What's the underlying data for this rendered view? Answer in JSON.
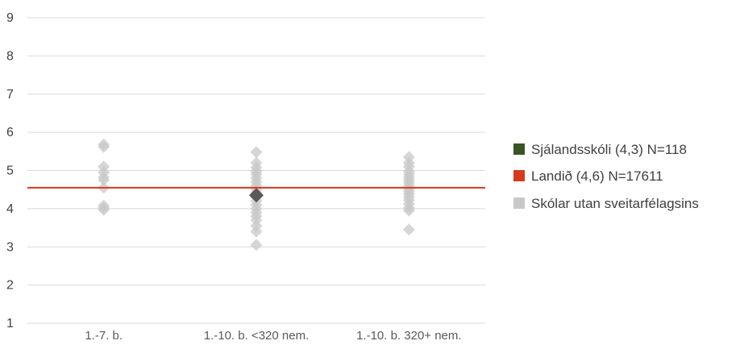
{
  "chart_data": {
    "type": "scatter",
    "title": "",
    "xlabel": "",
    "ylabel": "",
    "ylim": [
      1,
      9
    ],
    "y_ticks": [
      1,
      2,
      3,
      4,
      5,
      6,
      7,
      8,
      9
    ],
    "grid": true,
    "legend_position": "right",
    "categories": [
      "1.-7. b.",
      "1.-10. b. <320 nem.",
      "1.-10. b. 320+ nem."
    ],
    "series": [
      {
        "name": "Sjálandsskóli (4,3) N=118",
        "color": "#375623",
        "marker_color": "#595959",
        "points": [
          {
            "category": "1.-10. b. <320 nem.",
            "y": 4.35
          }
        ]
      },
      {
        "name": "Landið (4,6) N=17611",
        "color": "#d63a1e",
        "style": "horizontal-line",
        "y": 4.55
      },
      {
        "name": "Skólar utan sveitarfélagsins",
        "color": "#c8c8c8",
        "points": [
          {
            "category": "1.-7. b.",
            "y": 5.68
          },
          {
            "category": "1.-7. b.",
            "y": 5.62
          },
          {
            "category": "1.-7. b.",
            "y": 5.1
          },
          {
            "category": "1.-7. b.",
            "y": 4.95
          },
          {
            "category": "1.-7. b.",
            "y": 4.82
          },
          {
            "category": "1.-7. b.",
            "y": 4.75
          },
          {
            "category": "1.-7. b.",
            "y": 4.55
          },
          {
            "category": "1.-7. b.",
            "y": 4.08
          },
          {
            "category": "1.-7. b.",
            "y": 4.02
          },
          {
            "category": "1.-7. b.",
            "y": 3.97
          },
          {
            "category": "1.-10. b. <320 nem.",
            "y": 5.48
          },
          {
            "category": "1.-10. b. <320 nem.",
            "y": 5.2
          },
          {
            "category": "1.-10. b. <320 nem.",
            "y": 5.08
          },
          {
            "category": "1.-10. b. <320 nem.",
            "y": 4.98
          },
          {
            "category": "1.-10. b. <320 nem.",
            "y": 4.9
          },
          {
            "category": "1.-10. b. <320 nem.",
            "y": 4.8
          },
          {
            "category": "1.-10. b. <320 nem.",
            "y": 4.7
          },
          {
            "category": "1.-10. b. <320 nem.",
            "y": 4.6
          },
          {
            "category": "1.-10. b. <320 nem.",
            "y": 4.5
          },
          {
            "category": "1.-10. b. <320 nem.",
            "y": 4.42
          },
          {
            "category": "1.-10. b. <320 nem.",
            "y": 4.3
          },
          {
            "category": "1.-10. b. <320 nem.",
            "y": 4.2
          },
          {
            "category": "1.-10. b. <320 nem.",
            "y": 4.1
          },
          {
            "category": "1.-10. b. <320 nem.",
            "y": 4.0
          },
          {
            "category": "1.-10. b. <320 nem.",
            "y": 3.9
          },
          {
            "category": "1.-10. b. <320 nem.",
            "y": 3.8
          },
          {
            "category": "1.-10. b. <320 nem.",
            "y": 3.7
          },
          {
            "category": "1.-10. b. <320 nem.",
            "y": 3.55
          },
          {
            "category": "1.-10. b. <320 nem.",
            "y": 3.4
          },
          {
            "category": "1.-10. b. <320 nem.",
            "y": 3.05
          },
          {
            "category": "1.-10. b. 320+ nem.",
            "y": 5.35
          },
          {
            "category": "1.-10. b. 320+ nem.",
            "y": 5.2
          },
          {
            "category": "1.-10. b. 320+ nem.",
            "y": 5.1
          },
          {
            "category": "1.-10. b. 320+ nem.",
            "y": 4.98
          },
          {
            "category": "1.-10. b. 320+ nem.",
            "y": 4.9
          },
          {
            "category": "1.-10. b. 320+ nem.",
            "y": 4.82
          },
          {
            "category": "1.-10. b. 320+ nem.",
            "y": 4.75
          },
          {
            "category": "1.-10. b. 320+ nem.",
            "y": 4.68
          },
          {
            "category": "1.-10. b. 320+ nem.",
            "y": 4.6
          },
          {
            "category": "1.-10. b. 320+ nem.",
            "y": 4.52
          },
          {
            "category": "1.-10. b. 320+ nem.",
            "y": 4.45
          },
          {
            "category": "1.-10. b. 320+ nem.",
            "y": 4.38
          },
          {
            "category": "1.-10. b. 320+ nem.",
            "y": 4.3
          },
          {
            "category": "1.-10. b. 320+ nem.",
            "y": 4.22
          },
          {
            "category": "1.-10. b. 320+ nem.",
            "y": 4.12
          },
          {
            "category": "1.-10. b. 320+ nem.",
            "y": 4.02
          },
          {
            "category": "1.-10. b. 320+ nem.",
            "y": 3.95
          },
          {
            "category": "1.-10. b. 320+ nem.",
            "y": 3.45
          }
        ]
      }
    ]
  }
}
